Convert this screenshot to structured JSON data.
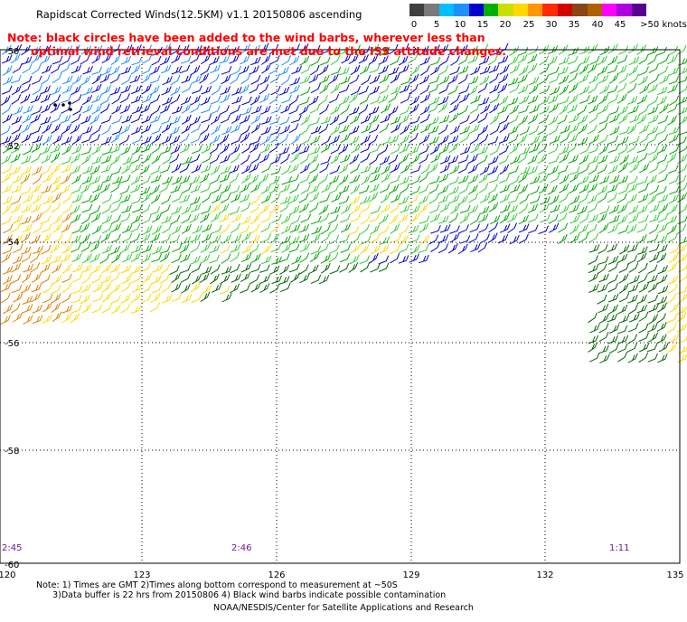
{
  "title": "Rapidscat Corrected Winds(12.5KM) v1.1 20150806 ascending",
  "note": {
    "line1": "Note: black circles have been added to the wind barbs, wherever less than",
    "line2": "      optimal wind retrieval conditions are met due to the ISS attitude changes."
  },
  "legend": {
    "colors": [
      "#404040",
      "#7a7a7a",
      "#00bfff",
      "#1e90ff",
      "#0000cd",
      "#00b000",
      "#c8e000",
      "#ffd800",
      "#ff9800",
      "#ff2a00",
      "#d40000",
      "#8b4513",
      "#b06000",
      "#ff00ff",
      "#b000e0",
      "#5a0090"
    ],
    "labels": [
      "0",
      "5",
      "10",
      "15",
      "20",
      "25",
      "30",
      "35",
      "40",
      "45",
      ">50 knots"
    ]
  },
  "map": {
    "lon_ticks": [
      "120",
      "123",
      "126",
      "129",
      "132",
      "135"
    ],
    "lat_ticks": [
      "-50",
      "-52",
      "-54",
      "-56",
      "-58",
      "-60"
    ],
    "time_labels": [
      "2:45",
      "2:46",
      "1:11"
    ]
  },
  "footnote": {
    "line1": "Note: 1) Times are GMT 2)Times along bottom correspond to measurement at ~50S",
    "line2": "      3)Data buffer is 22 hrs from 20150806 4) Black wind barbs indicate possible contamination"
  },
  "credit": "NOAA/NESDIS/Center for Satellite Applications and Research",
  "wind_colors": {
    "dark_blue": "#0000cc",
    "light_blue": "#1e90ff",
    "green": "#00a800",
    "light_green": "#33cc33",
    "dark_green": "#006400",
    "yellow": "#ffd800",
    "orange": "#e08000",
    "black": "#000000"
  }
}
